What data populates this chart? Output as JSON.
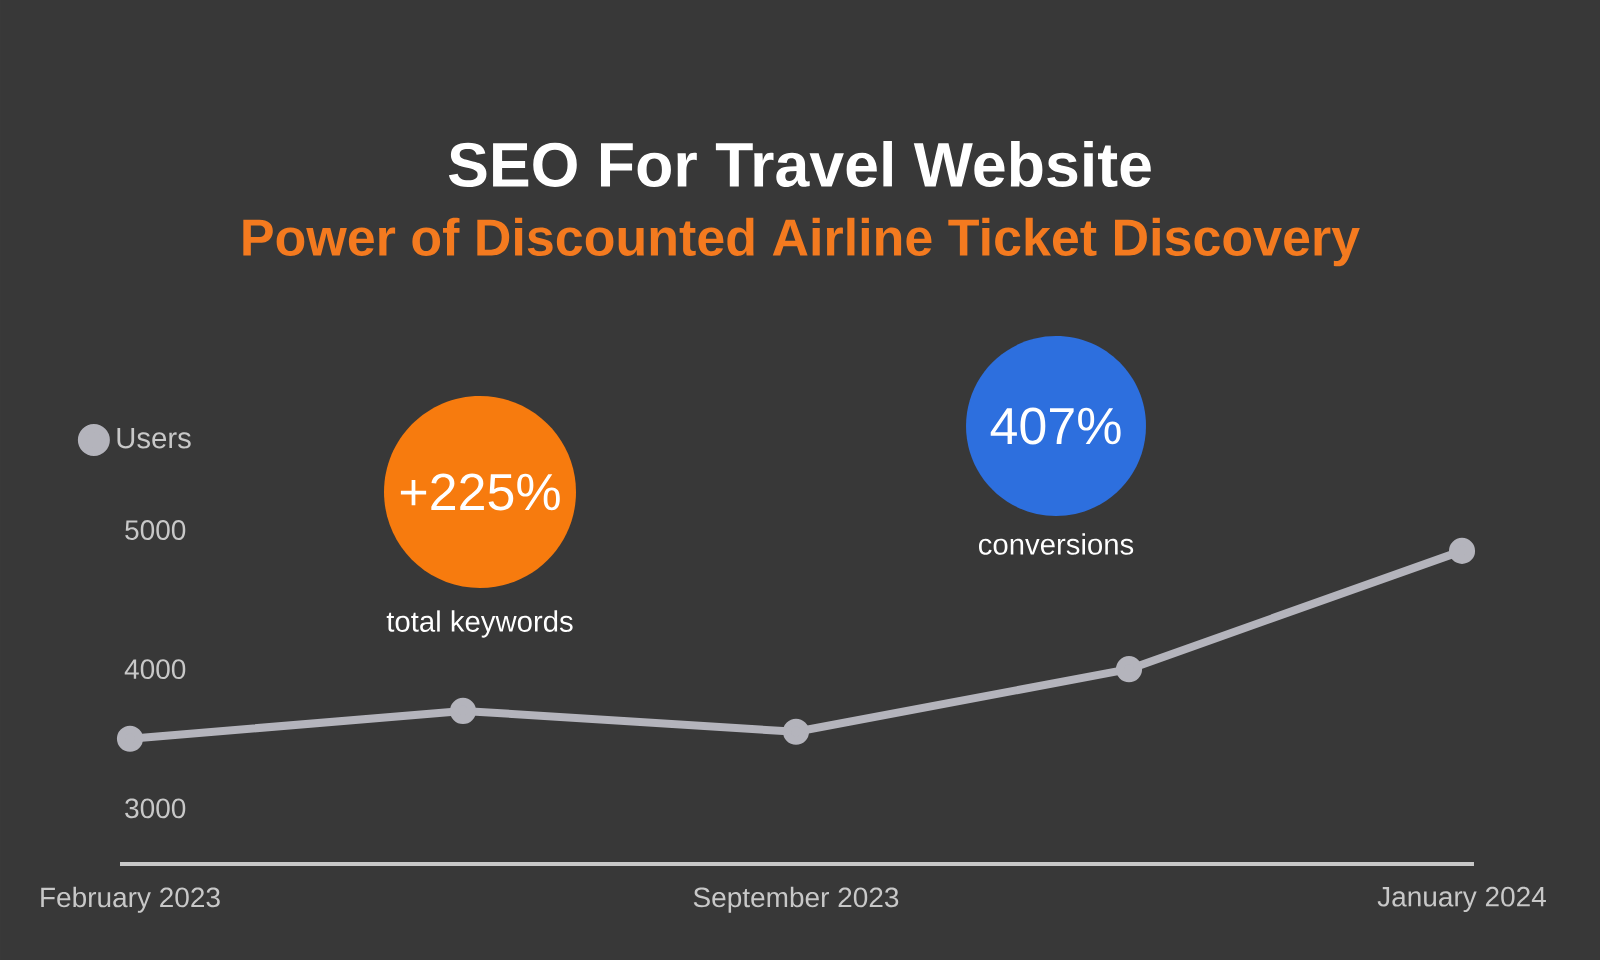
{
  "chart_data": {
    "type": "line",
    "title": "SEO For Travel Website",
    "subtitle": "Power of Discounted Airline Ticket Discovery",
    "categories": [
      "February 2023",
      null,
      "September 2023",
      null,
      "January 2024"
    ],
    "series": [
      {
        "name": "Users",
        "color": "#b4b4bc",
        "values": [
          3500,
          3700,
          3550,
          4000,
          4850
        ]
      }
    ],
    "ylim": [
      2600,
      5000
    ],
    "yticks": [
      3000,
      4000,
      5000
    ],
    "annotations": [
      "+225%",
      "total keywords",
      "407%",
      "conversions"
    ],
    "legend": "top left",
    "marker": "circle",
    "line_style": "solid"
  }
}
